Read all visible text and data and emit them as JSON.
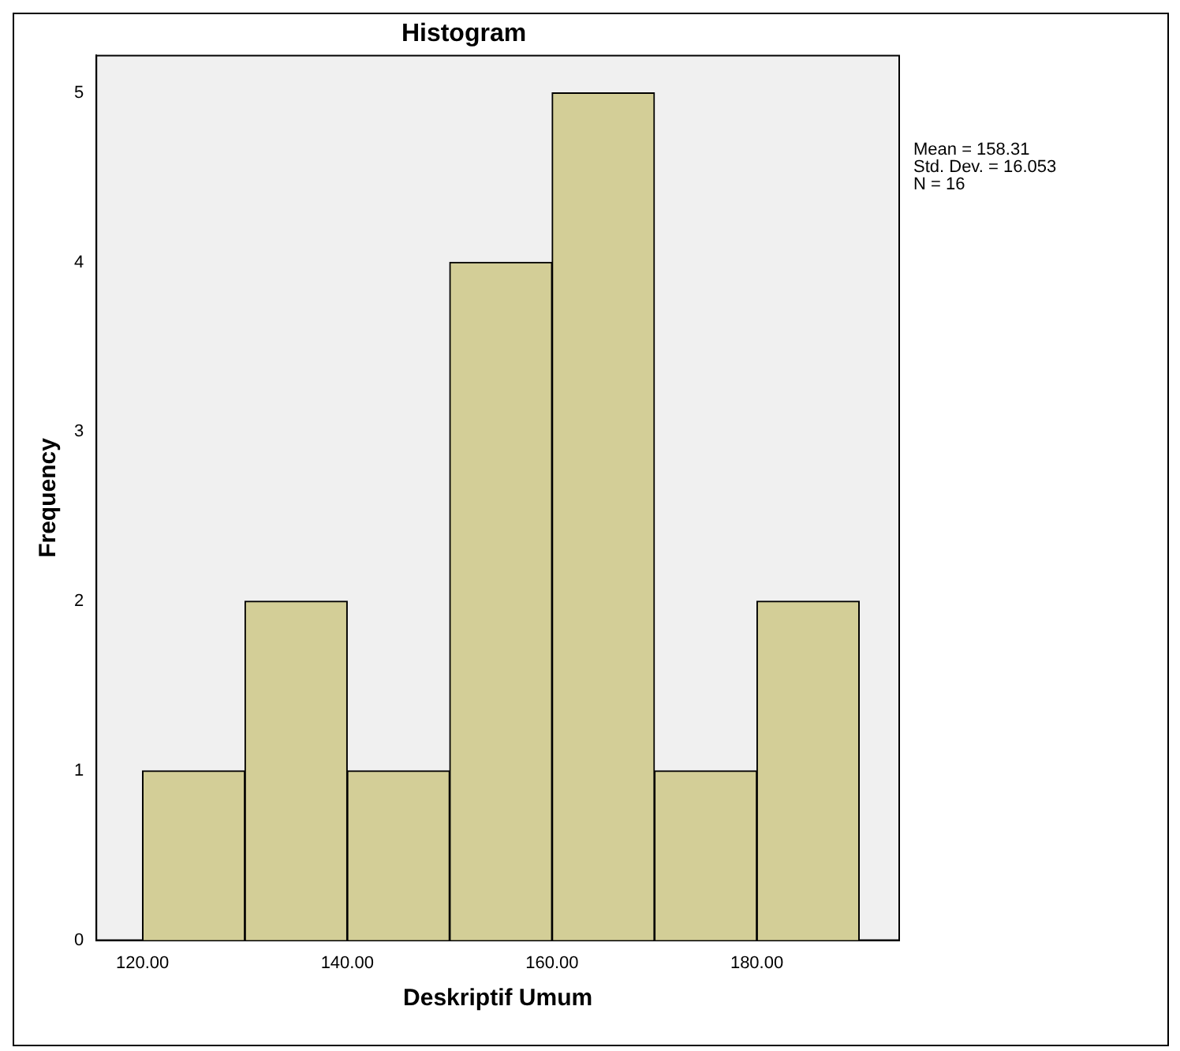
{
  "chart_data": {
    "type": "histogram",
    "title": "Histogram",
    "xlabel": "Deskriptif Umum",
    "ylabel": "Frequency",
    "bins": [
      120,
      130,
      140,
      150,
      160,
      170,
      180,
      190
    ],
    "values": [
      1,
      2,
      1,
      4,
      5,
      1,
      2
    ],
    "color": "#d3ce97",
    "xlim": [
      115.5,
      193.9
    ],
    "xticks": [
      {
        "value": 120,
        "label": "120.00"
      },
      {
        "value": 140,
        "label": "140.00"
      },
      {
        "value": 160,
        "label": "160.00"
      },
      {
        "value": 180,
        "label": "180.00"
      }
    ],
    "ylim": [
      0,
      5.22
    ],
    "yticks": [
      0,
      1,
      2,
      3,
      4,
      5
    ],
    "grid": false,
    "legend": false,
    "annotations": [
      "Mean = 158.31",
      "Std. Dev. = 16.053",
      "N = 16"
    ]
  }
}
